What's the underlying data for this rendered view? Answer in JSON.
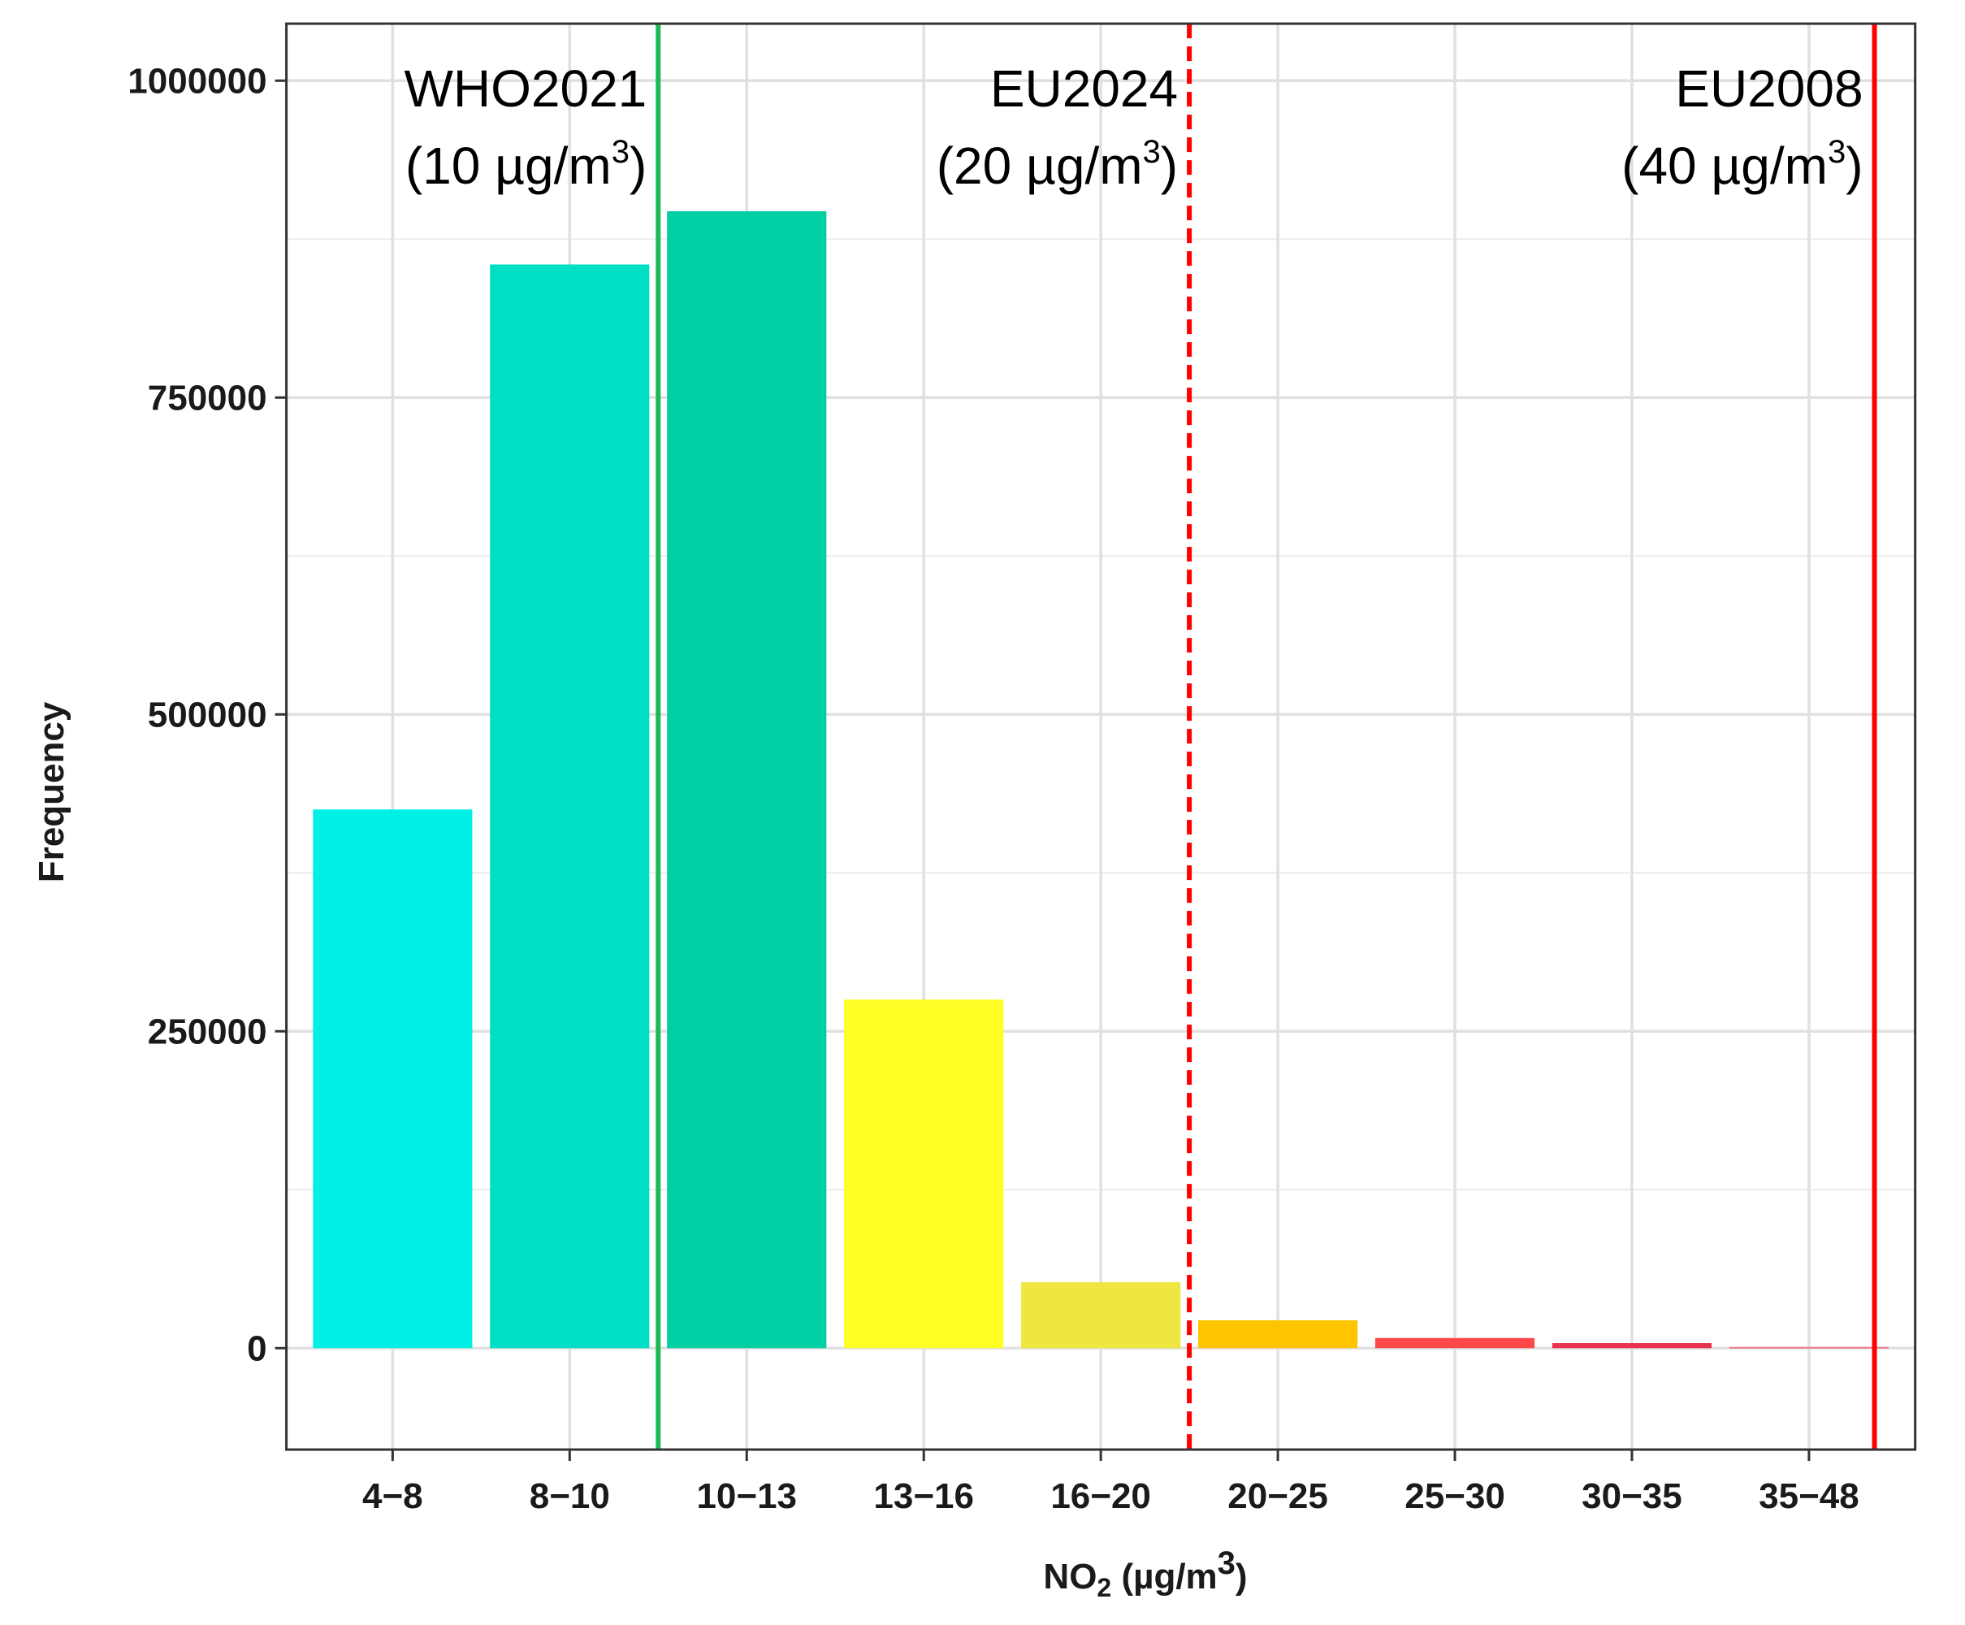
{
  "chart_data": {
    "type": "bar",
    "xlabel_main": "NO",
    "xlabel_sub": "2",
    "xlabel_unit": " (µg/m",
    "xlabel_sup": "3",
    "xlabel_close": ")",
    "ylabel": "Frequency",
    "ylim": [
      -80000,
      1045000
    ],
    "yticks": [
      0,
      250000,
      500000,
      750000,
      1000000
    ],
    "ytick_labels": [
      "0",
      "250000",
      "500000",
      "750000",
      "1000000"
    ],
    "grid": true,
    "categories": [
      "4−8",
      "8−10",
      "10−13",
      "13−16",
      "16−20",
      "20−25",
      "25−30",
      "30−35",
      "35−48"
    ],
    "values": [
      425000,
      855000,
      897000,
      275000,
      52000,
      22000,
      8000,
      4000,
      1000
    ],
    "colors": [
      "#00F0E6",
      "#00DEC4",
      "#00CFA4",
      "#FFFF26",
      "#F0E640",
      "#FFC400",
      "#FF4848",
      "#E8324E",
      "#EE7C8C"
    ],
    "thresholds": [
      {
        "name": "WHO2021",
        "value_label": "(10 µg/m",
        "value_sup": "3",
        "value_close": ")",
        "x_value": 10,
        "position_between": [
          1,
          2
        ],
        "color": "#1DB954",
        "style": "solid"
      },
      {
        "name": "EU2024",
        "value_label": "(20 µg/m",
        "value_sup": "3",
        "value_close": ")",
        "x_value": 20,
        "position_between": [
          4,
          5
        ],
        "color": "#FF0000",
        "style": "dashed"
      },
      {
        "name": "EU2008",
        "value_label": "(40 µg/m",
        "value_sup": "3",
        "value_close": ")",
        "x_value": 40,
        "position_in_bin": 8,
        "color": "#FF0000",
        "style": "solid"
      }
    ]
  }
}
